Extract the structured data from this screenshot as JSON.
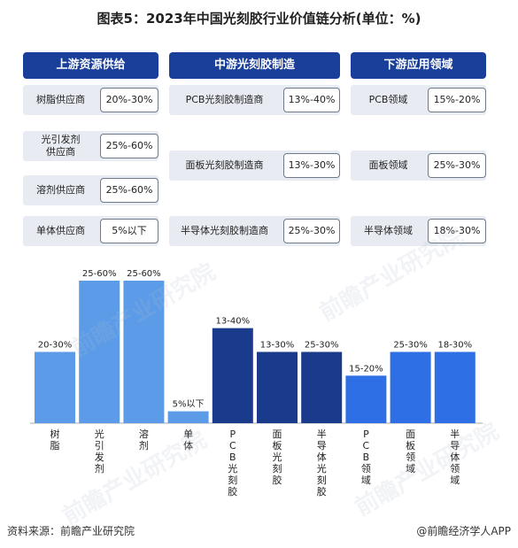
{
  "title": "图表5：2023年中国光刻胶行业价值链分析(单位：%)",
  "columns": [
    {
      "header": "上游资源供给",
      "rows": [
        {
          "label": "树脂供应商",
          "value": "20%-30%"
        },
        {
          "label": "光引发剂\n供应商",
          "value": "25%-60%"
        },
        {
          "label": "溶剂供应商",
          "value": "25%-60%"
        },
        {
          "label": "单体供应商",
          "value": "5%以下"
        }
      ]
    },
    {
      "header": "中游光刻胶制造",
      "rows": [
        {
          "label": "PCB光刻胶制造商",
          "value": "13%-40%"
        },
        {
          "label": "面板光刻胶制造商",
          "value": "13%-30%"
        },
        {
          "label": "半导体光刻胶制造商",
          "value": "25%-30%"
        }
      ]
    },
    {
      "header": "下游应用领域",
      "rows": [
        {
          "label": "PCB领域",
          "value": "15%-20%"
        },
        {
          "label": "面板领域",
          "value": "25%-30%"
        },
        {
          "label": "半导体领域",
          "value": "18%-30%"
        }
      ]
    }
  ],
  "chart_data": {
    "type": "bar",
    "categories": [
      "树脂",
      "光引发剂",
      "溶剂",
      "单体",
      "PCB光刻胶",
      "面板光刻胶",
      "半导体光刻胶",
      "PCB领域",
      "面板领域",
      "半导体领域"
    ],
    "values": [
      30,
      60,
      60,
      5,
      40,
      30,
      30,
      20,
      30,
      30
    ],
    "labels": [
      "20-30%",
      "25-60%",
      "25-60%",
      "5%以下",
      "13-40%",
      "13-30%",
      "25-30%",
      "15-20%",
      "25-30%",
      "18-30%"
    ],
    "groups": [
      0,
      0,
      0,
      0,
      1,
      1,
      1,
      2,
      2,
      2
    ],
    "group_colors": [
      "#5b9be8",
      "#1a3a8c",
      "#2e6fe6"
    ],
    "ylim": [
      0,
      60
    ]
  },
  "watermark": "前瞻产业研究院",
  "footer": {
    "source": "资料来源：前瞻产业研究院",
    "brand": "@前瞻经济学人APP"
  }
}
